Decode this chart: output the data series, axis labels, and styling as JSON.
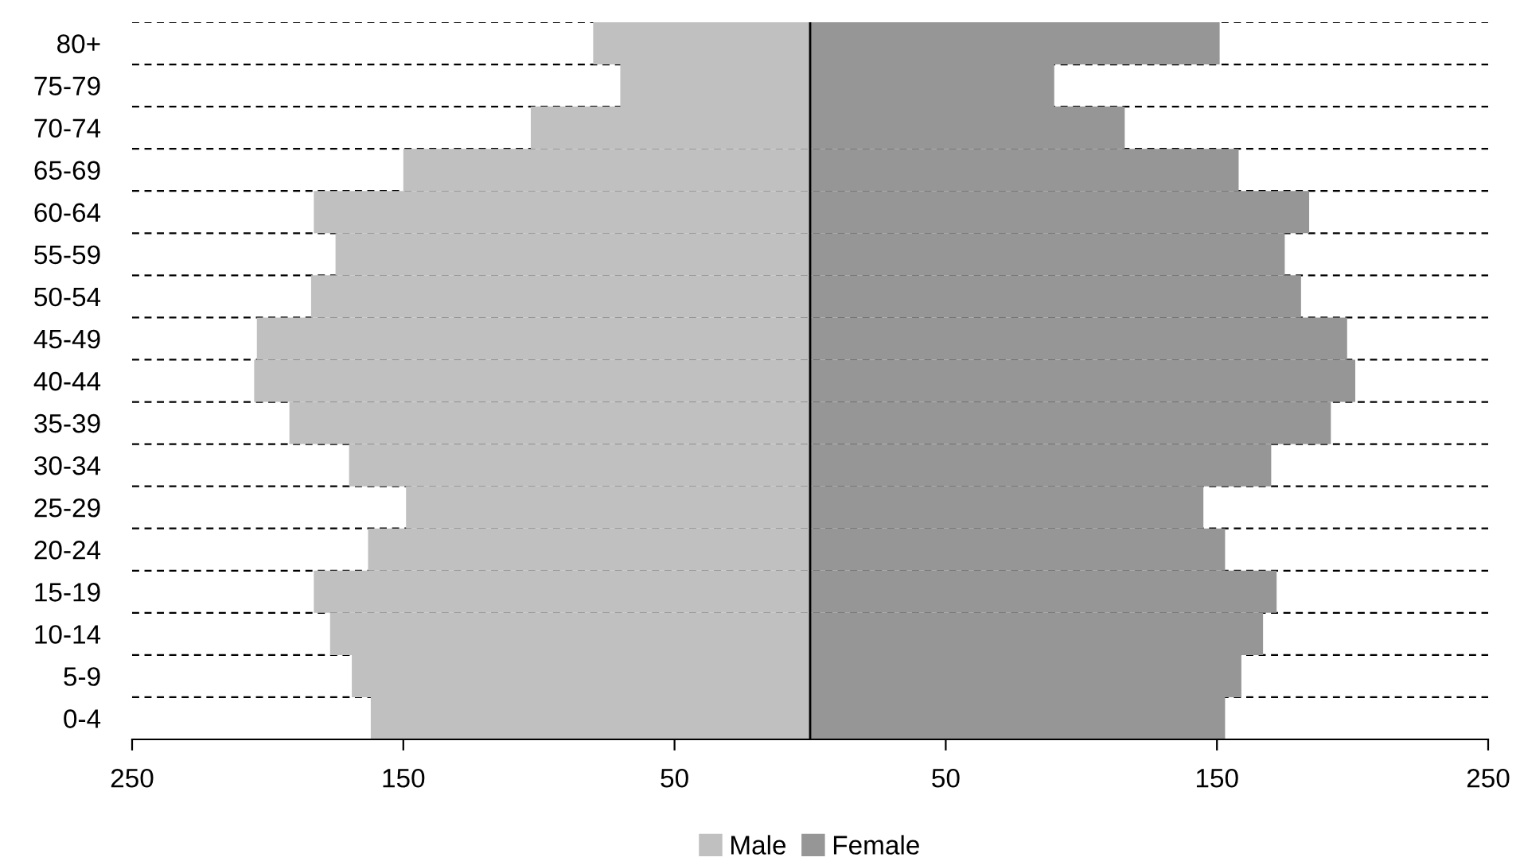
{
  "chart_data": {
    "type": "bar",
    "orientation": "horizontal",
    "stacked": true,
    "categories": [
      "80+",
      "75-79",
      "70-74",
      "65-69",
      "60-64",
      "55-59",
      "50-54",
      "45-49",
      "40-44",
      "35-39",
      "30-34",
      "25-29",
      "20-24",
      "15-19",
      "10-14",
      "5-9",
      "0-4"
    ],
    "series": [
      {
        "name": "Male",
        "color": "#c0c0c0",
        "values": [
          -80,
          -70,
          -103,
          -150,
          -183,
          -175,
          -184,
          -204,
          -205,
          -192,
          -170,
          -149,
          -163,
          -183,
          -177,
          -169,
          -162
        ]
      },
      {
        "name": "Female",
        "color": "#969696",
        "values": [
          151,
          90,
          116,
          158,
          184,
          175,
          181,
          198,
          201,
          192,
          170,
          145,
          153,
          172,
          167,
          159,
          153
        ]
      }
    ],
    "xlim": [
      -250,
      250
    ],
    "xticks": [
      {
        "value": -250,
        "label": "250"
      },
      {
        "value": -150,
        "label": "150"
      },
      {
        "value": -50,
        "label": "50"
      },
      50,
      150,
      250
    ],
    "grid": "y",
    "legend": "bottom"
  }
}
